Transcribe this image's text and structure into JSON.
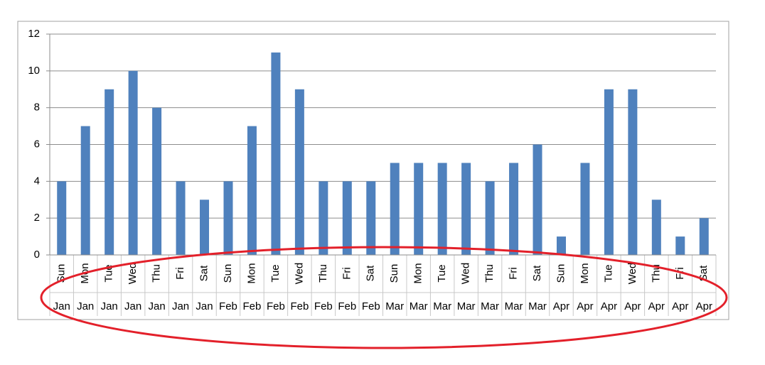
{
  "chart_data": {
    "type": "bar",
    "categories": [
      "Sun",
      "Mon",
      "Tue",
      "Wed",
      "Thu",
      "Fri",
      "Sat",
      "Sun",
      "Mon",
      "Tue",
      "Wed",
      "Thu",
      "Fri",
      "Sat",
      "Sun",
      "Mon",
      "Tue",
      "Wed",
      "Thu",
      "Fri",
      "Sat",
      "Sun",
      "Mon",
      "Tue",
      "Wed",
      "Thu",
      "Fri",
      "Sat"
    ],
    "category_groups": [
      "Jan",
      "Jan",
      "Jan",
      "Jan",
      "Jan",
      "Jan",
      "Jan",
      "Feb",
      "Feb",
      "Feb",
      "Feb",
      "Feb",
      "Feb",
      "Feb",
      "Mar",
      "Mar",
      "Mar",
      "Mar",
      "Mar",
      "Mar",
      "Mar",
      "Apr",
      "Apr",
      "Apr",
      "Apr",
      "Apr",
      "Apr",
      "Apr"
    ],
    "values": [
      4,
      7,
      9,
      10,
      8,
      4,
      3,
      4,
      7,
      11,
      9,
      4,
      4,
      4,
      5,
      5,
      5,
      5,
      4,
      5,
      6,
      1,
      5,
      9,
      9,
      3,
      1,
      2
    ],
    "color": "#4f81bd",
    "ylim": [
      0,
      12
    ],
    "yticks": [
      0,
      2,
      4,
      6,
      8,
      10,
      12
    ],
    "grid": true
  }
}
